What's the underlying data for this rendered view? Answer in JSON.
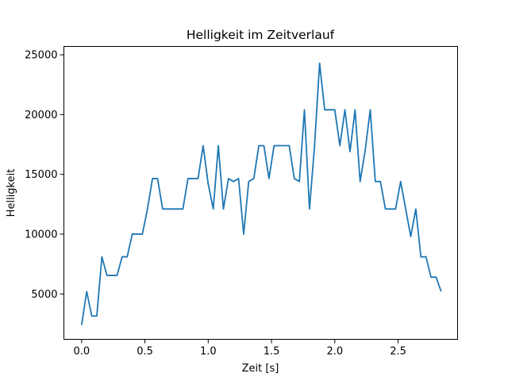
{
  "chart_data": {
    "type": "line",
    "title": "Helligkeit im Zeitverlauf",
    "xlabel": "Zeit [s]",
    "ylabel": "Helligkeit",
    "xlim": [
      -0.14,
      2.97
    ],
    "ylim": [
      1200,
      25700
    ],
    "x_ticks": [
      0.0,
      0.5,
      1.0,
      1.5,
      2.0,
      2.5
    ],
    "x_tick_labels": [
      "0.0",
      "0.5",
      "1.0",
      "1.5",
      "2.0",
      "2.5"
    ],
    "y_ticks": [
      5000,
      10000,
      15000,
      20000,
      25000
    ],
    "y_tick_labels": [
      "5000",
      "10000",
      "15000",
      "20000",
      "25000"
    ],
    "grid": false,
    "series": [
      {
        "name": "Helligkeit",
        "color": "#1f77b4",
        "x": [
          0.0,
          0.04,
          0.08,
          0.12,
          0.16,
          0.2,
          0.24,
          0.28,
          0.32,
          0.36,
          0.4,
          0.44,
          0.48,
          0.52,
          0.56,
          0.6,
          0.64,
          0.68,
          0.72,
          0.76,
          0.8,
          0.84,
          0.88,
          0.92,
          0.96,
          1.0,
          1.04,
          1.08,
          1.12,
          1.16,
          1.2,
          1.24,
          1.28,
          1.32,
          1.36,
          1.4,
          1.44,
          1.48,
          1.52,
          1.56,
          1.6,
          1.64,
          1.68,
          1.72,
          1.76,
          1.8,
          1.84,
          1.88,
          1.92,
          1.96,
          2.0,
          2.04,
          2.08,
          2.12,
          2.16,
          2.2,
          2.24,
          2.28,
          2.32,
          2.36,
          2.4,
          2.44,
          2.48,
          2.52,
          2.56,
          2.6,
          2.64,
          2.68,
          2.72,
          2.76,
          2.8,
          2.84
        ],
        "values": [
          2400,
          5200,
          3150,
          3150,
          8100,
          6550,
          6550,
          6550,
          8100,
          8100,
          10000,
          10000,
          10000,
          12100,
          14650,
          14650,
          12100,
          12100,
          12100,
          12100,
          12100,
          14650,
          14650,
          14650,
          17400,
          14200,
          12100,
          17400,
          12100,
          14650,
          14400,
          14650,
          10000,
          14400,
          14650,
          17400,
          17400,
          14650,
          17400,
          17400,
          17400,
          17400,
          14650,
          14400,
          20400,
          12100,
          17400,
          24300,
          20400,
          20400,
          20400,
          17400,
          20400,
          16900,
          20400,
          14400,
          17000,
          20400,
          14400,
          14400,
          12100,
          12100,
          12100,
          14400,
          12100,
          9800,
          12100,
          8100,
          8100,
          6400,
          6400,
          5200
        ]
      }
    ]
  }
}
